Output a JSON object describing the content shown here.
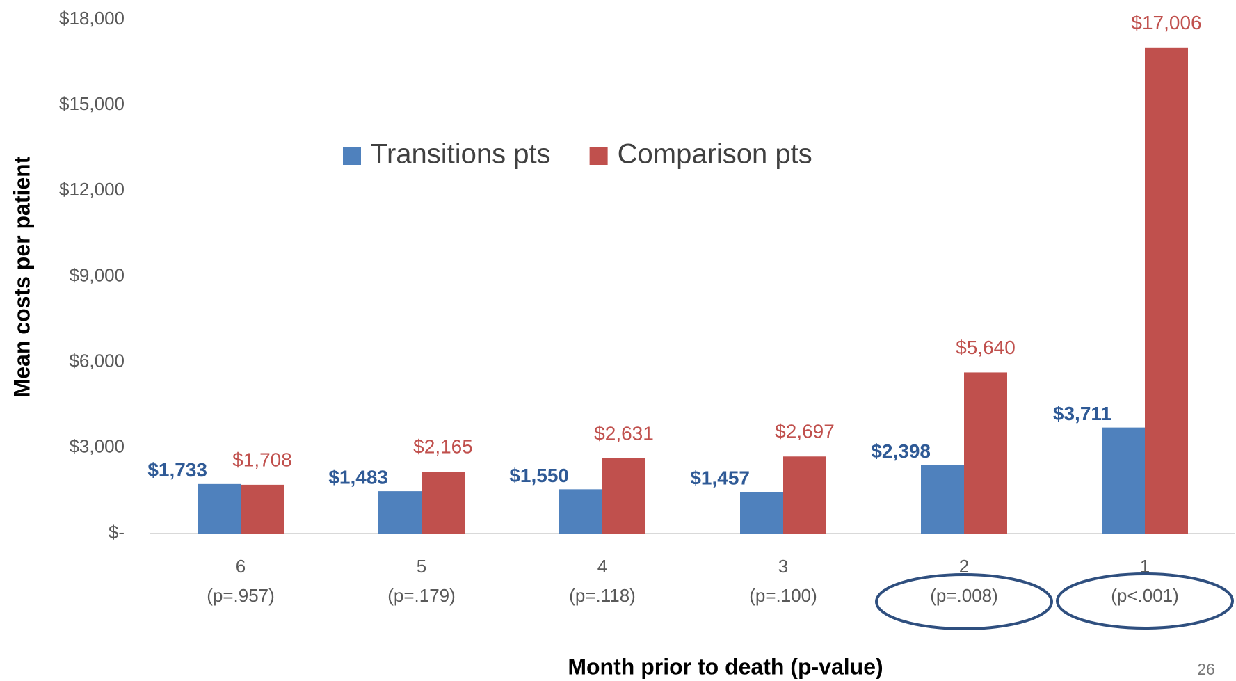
{
  "chart_data": {
    "type": "bar",
    "y_axis_label": "Mean costs per patient",
    "x_axis_label": "Month prior to death (p-value)",
    "categories": [
      "6",
      "5",
      "4",
      "3",
      "2",
      "1"
    ],
    "category_sublabels": [
      "(p=.957)",
      "(p=.179)",
      "(p=.118)",
      "(p=.100)",
      "(p=.008)",
      "(p<.001)"
    ],
    "series": [
      {
        "name": "Transitions pts",
        "color": "#4f81bd",
        "label_color": "#2f5a96",
        "values": [
          1733,
          1483,
          1550,
          1457,
          2398,
          3711
        ],
        "value_labels": [
          "$1,733",
          "$1,483",
          "$1,550",
          "$1,457",
          "$2,398",
          "$3,711"
        ]
      },
      {
        "name": "Comparison pts",
        "color": "#c0504d",
        "label_color": "#c0504d",
        "values": [
          1708,
          2165,
          2631,
          2697,
          5640,
          17006
        ],
        "value_labels": [
          "$1,708",
          "$2,165",
          "$2,631",
          "$2,697",
          "$5,640",
          "$17,006"
        ]
      }
    ],
    "ylim": [
      0,
      18000
    ],
    "yticks": [
      {
        "value": 0,
        "label": "$-"
      },
      {
        "value": 3000,
        "label": "$3,000"
      },
      {
        "value": 6000,
        "label": "$6,000"
      },
      {
        "value": 9000,
        "label": "$9,000"
      },
      {
        "value": 12000,
        "label": "$12,000"
      },
      {
        "value": 15000,
        "label": "$15,000"
      },
      {
        "value": 18000,
        "label": "$18,000"
      }
    ],
    "grid": false,
    "legend": "top",
    "page_number": "26"
  }
}
